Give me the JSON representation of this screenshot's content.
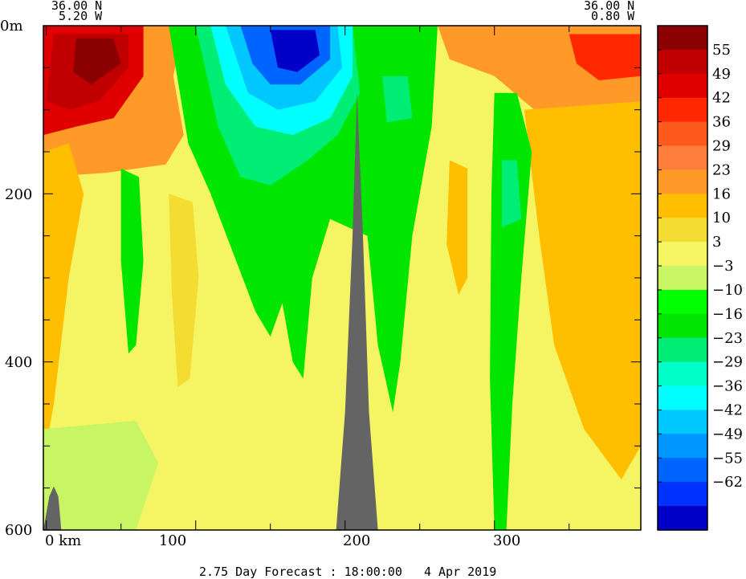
{
  "chart_data": {
    "type": "heatmap",
    "title": "",
    "caption": "2.75 Day Forecast : 18:00:00   4 Apr 2019",
    "corner_left": {
      "lat": "36.00 N",
      "lon": "5.20 W"
    },
    "corner_right": {
      "lat": "36.00 N",
      "lon": "0.80 W"
    },
    "x_unit": "km",
    "x_range": [
      -2,
      398
    ],
    "x_ticks": [
      0,
      100,
      200,
      300
    ],
    "x_tick_labels": [
      "0 km",
      "100",
      "200",
      "300"
    ],
    "y_unit": "m",
    "y_range": [
      0,
      600
    ],
    "y_ticks": [
      0,
      200,
      400,
      600
    ],
    "y_tick_labels": [
      "0m",
      "200",
      "400",
      "600"
    ],
    "colorbar": {
      "labels": [
        "55",
        "49",
        "42",
        "36",
        "29",
        "23",
        "16",
        "10",
        "3",
        "-3",
        "-10",
        "-16",
        "-23",
        "-29",
        "-36",
        "-42",
        "-49",
        "-55",
        "-62"
      ],
      "colors": [
        "#8b0000",
        "#c00000",
        "#e00000",
        "#ff2800",
        "#ff5a1e",
        "#ff7e3c",
        "#ff9a28",
        "#ffbe00",
        "#f5dc32",
        "#f5f564",
        "#c8f564",
        "#00ff00",
        "#00e600",
        "#00ee76",
        "#00ffc8",
        "#00ffff",
        "#00c8ff",
        "#0096ff",
        "#0064ff",
        "#0032ff",
        "#0000c8"
      ]
    },
    "terrain_color": "#646464",
    "regions": [
      {
        "name": "upper-left-warm-orange",
        "color": "#ff9a28",
        "pts": [
          [
            -2,
            0
          ],
          [
            92,
            0
          ],
          [
            85,
            60
          ],
          [
            92,
            130
          ],
          [
            80,
            165
          ],
          [
            40,
            175
          ],
          [
            -2,
            180
          ]
        ]
      },
      {
        "name": "upper-left-red",
        "color": "#e00000",
        "pts": [
          [
            -2,
            0
          ],
          [
            65,
            0
          ],
          [
            65,
            60
          ],
          [
            45,
            110
          ],
          [
            20,
            120
          ],
          [
            -2,
            130
          ]
        ]
      },
      {
        "name": "upper-left-dark-red",
        "color": "#c00000",
        "pts": [
          [
            5,
            10
          ],
          [
            55,
            10
          ],
          [
            55,
            50
          ],
          [
            35,
            90
          ],
          [
            15,
            100
          ],
          [
            0,
            90
          ]
        ]
      },
      {
        "name": "upper-left-deep-red",
        "color": "#8b0000",
        "pts": [
          [
            20,
            15
          ],
          [
            45,
            15
          ],
          [
            50,
            45
          ],
          [
            30,
            70
          ],
          [
            18,
            55
          ]
        ]
      },
      {
        "name": "upper-right-orange",
        "color": "#ff9a28",
        "pts": [
          [
            262,
            0
          ],
          [
            398,
            0
          ],
          [
            398,
            130
          ],
          [
            370,
            150
          ],
          [
            340,
            120
          ],
          [
            300,
            60
          ],
          [
            270,
            40
          ]
        ]
      },
      {
        "name": "upper-right-red",
        "color": "#ff2800",
        "pts": [
          [
            350,
            10
          ],
          [
            398,
            10
          ],
          [
            398,
            60
          ],
          [
            370,
            65
          ],
          [
            355,
            45
          ]
        ]
      },
      {
        "name": "right-orange-plume",
        "color": "#ffbe00",
        "pts": [
          [
            320,
            100
          ],
          [
            398,
            90
          ],
          [
            398,
            500
          ],
          [
            385,
            540
          ],
          [
            360,
            480
          ],
          [
            340,
            380
          ],
          [
            330,
            250
          ]
        ]
      },
      {
        "name": "left-orange-column",
        "color": "#ffbe00",
        "pts": [
          [
            -2,
            150
          ],
          [
            15,
            140
          ],
          [
            25,
            200
          ],
          [
            15,
            300
          ],
          [
            5,
            450
          ],
          [
            -2,
            520
          ]
        ]
      },
      {
        "name": "mid-orange-column",
        "color": "#f5dc32",
        "pts": [
          [
            82,
            200
          ],
          [
            98,
            210
          ],
          [
            102,
            300
          ],
          [
            96,
            420
          ],
          [
            88,
            430
          ],
          [
            84,
            320
          ]
        ]
      },
      {
        "name": "green-lower-band",
        "color": "#c8f564",
        "pts": [
          [
            -2,
            480
          ],
          [
            60,
            470
          ],
          [
            75,
            520
          ],
          [
            60,
            600
          ],
          [
            -2,
            600
          ]
        ]
      },
      {
        "name": "yellow-lower-mid",
        "color": "#f5f564",
        "pts": [
          [
            100,
            350
          ],
          [
            180,
            360
          ],
          [
            190,
            600
          ],
          [
            100,
            600
          ]
        ]
      },
      {
        "name": "big-green-wedge",
        "color": "#00e600",
        "pts": [
          [
            82,
            0
          ],
          [
            262,
            0
          ],
          [
            258,
            120
          ],
          [
            245,
            250
          ],
          [
            237,
            400
          ],
          [
            232,
            460
          ],
          [
            222,
            380
          ],
          [
            215,
            250
          ],
          [
            190,
            230
          ],
          [
            178,
            300
          ],
          [
            172,
            420
          ],
          [
            165,
            400
          ],
          [
            158,
            330
          ],
          [
            150,
            370
          ],
          [
            140,
            340
          ],
          [
            125,
            270
          ],
          [
            110,
            200
          ],
          [
            95,
            140
          ]
        ]
      },
      {
        "name": "green-left-column",
        "color": "#00e600",
        "pts": [
          [
            50,
            170
          ],
          [
            62,
            180
          ],
          [
            65,
            280
          ],
          [
            60,
            380
          ],
          [
            55,
            390
          ],
          [
            50,
            280
          ]
        ]
      },
      {
        "name": "green-right-column",
        "color": "#00e600",
        "pts": [
          [
            300,
            80
          ],
          [
            315,
            80
          ],
          [
            325,
            150
          ],
          [
            318,
            300
          ],
          [
            312,
            450
          ],
          [
            308,
            600
          ],
          [
            300,
            600
          ],
          [
            297,
            420
          ],
          [
            298,
            200
          ]
        ]
      },
      {
        "name": "teal-right-spot",
        "color": "#00ee76",
        "pts": [
          [
            305,
            160
          ],
          [
            315,
            160
          ],
          [
            318,
            230
          ],
          [
            305,
            240
          ]
        ]
      },
      {
        "name": "teal-upper-core",
        "color": "#00ee76",
        "pts": [
          [
            100,
            0
          ],
          [
            205,
            0
          ],
          [
            210,
            80
          ],
          [
            195,
            130
          ],
          [
            175,
            160
          ],
          [
            150,
            190
          ],
          [
            130,
            180
          ],
          [
            115,
            120
          ]
        ]
      },
      {
        "name": "cyan-upper-core",
        "color": "#00ffff",
        "pts": [
          [
            110,
            0
          ],
          [
            205,
            0
          ],
          [
            205,
            60
          ],
          [
            190,
            110
          ],
          [
            165,
            130
          ],
          [
            140,
            120
          ],
          [
            120,
            70
          ]
        ]
      },
      {
        "name": "light-blue-core",
        "color": "#00c8ff",
        "pts": [
          [
            120,
            0
          ],
          [
            195,
            0
          ],
          [
            198,
            50
          ],
          [
            180,
            90
          ],
          [
            155,
            100
          ],
          [
            135,
            80
          ]
        ]
      },
      {
        "name": "blue-core",
        "color": "#0064ff",
        "pts": [
          [
            130,
            0
          ],
          [
            190,
            0
          ],
          [
            190,
            40
          ],
          [
            170,
            70
          ],
          [
            150,
            70
          ],
          [
            138,
            45
          ]
        ]
      },
      {
        "name": "dark-blue-core",
        "color": "#0000c8",
        "pts": [
          [
            150,
            5
          ],
          [
            180,
            5
          ],
          [
            183,
            35
          ],
          [
            168,
            55
          ],
          [
            155,
            50
          ]
        ]
      },
      {
        "name": "teal-right-of-ridge",
        "color": "#00ee76",
        "pts": [
          [
            225,
            60
          ],
          [
            242,
            60
          ],
          [
            245,
            110
          ],
          [
            228,
            115
          ]
        ]
      },
      {
        "name": "orange-right-column",
        "color": "#ffbe00",
        "pts": [
          [
            270,
            160
          ],
          [
            282,
            170
          ],
          [
            282,
            300
          ],
          [
            276,
            320
          ],
          [
            268,
            260
          ]
        ]
      }
    ],
    "terrain": [
      {
        "name": "central-ridge",
        "pts": [
          [
            194,
            600
          ],
          [
            200,
            460
          ],
          [
            205,
            250
          ],
          [
            208,
            80
          ],
          [
            212,
            250
          ],
          [
            216,
            460
          ],
          [
            222,
            600
          ]
        ]
      },
      {
        "name": "left-seamount",
        "pts": [
          [
            -2,
            600
          ],
          [
            2,
            560
          ],
          [
            5,
            548
          ],
          [
            8,
            560
          ],
          [
            10,
            600
          ]
        ]
      }
    ]
  }
}
